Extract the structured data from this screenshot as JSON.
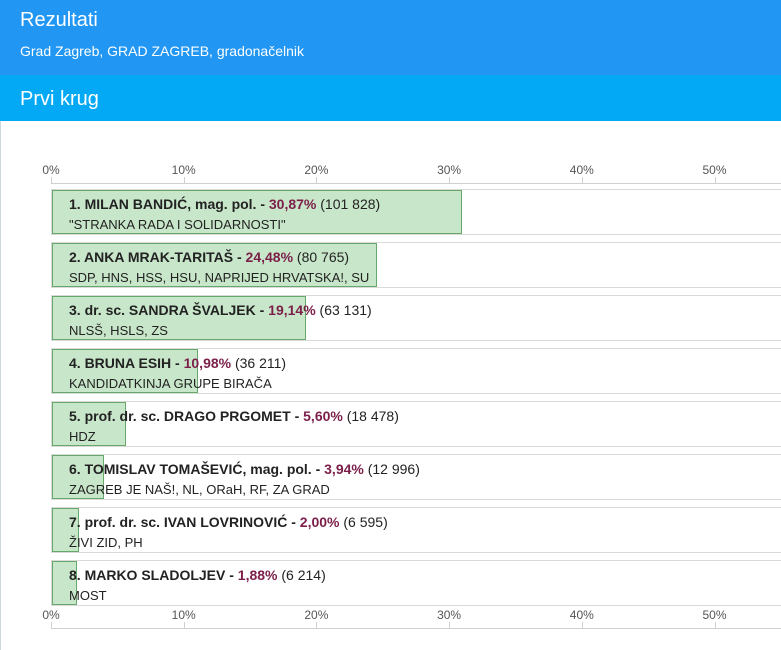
{
  "header": {
    "title": "Rezultati",
    "subtitle": "Grad Zagreb, GRAD ZAGREB, gradonačelnik"
  },
  "round": {
    "title": "Prvi krug"
  },
  "axis": {
    "ticks": [
      "0%",
      "10%",
      "20%",
      "30%",
      "40%",
      "50%"
    ]
  },
  "colors": {
    "header": "#2196f3",
    "subheader": "#03a9f4",
    "bar_fill": "#c8e6c9",
    "bar_border": "#66a86a",
    "percent_text": "#7b1f4a"
  },
  "candidates": [
    {
      "name": "1. MILAN BANDIĆ, mag. pol. - ",
      "percent_label": "30,87%",
      "percent": 30.87,
      "votes": " (101 828)",
      "party": "\"STRANKA RADA I SOLIDARNOSTI\""
    },
    {
      "name": "2. ANKA MRAK-TARITAŠ - ",
      "percent_label": "24,48%",
      "percent": 24.48,
      "votes": " (80 765)",
      "party": "SDP, HNS, HSS, HSU, NAPRIJED HRVATSKA!, SU"
    },
    {
      "name": "3. dr. sc. SANDRA ŠVALJEK - ",
      "percent_label": "19,14%",
      "percent": 19.14,
      "votes": " (63 131)",
      "party": "NLSŠ, HSLS, ZS"
    },
    {
      "name": "4. BRUNA ESIH - ",
      "percent_label": "10,98%",
      "percent": 10.98,
      "votes": " (36 211)",
      "party": "KANDIDATKINJA GRUPE BIRAČA"
    },
    {
      "name": "5. prof. dr. sc. DRAGO PRGOMET - ",
      "percent_label": "5,60%",
      "percent": 5.6,
      "votes": " (18 478)",
      "party": "HDZ"
    },
    {
      "name": "6. TOMISLAV TOMAŠEVIĆ, mag. pol. - ",
      "percent_label": "3,94%",
      "percent": 3.94,
      "votes": " (12 996)",
      "party": "ZAGREB JE NAŠ!, NL, ORaH, RF, ZA GRAD"
    },
    {
      "name": "7. prof. dr. sc. IVAN LOVRINOVIĆ - ",
      "percent_label": "2,00%",
      "percent": 2.0,
      "votes": " (6 595)",
      "party": "ŽIVI ZID, PH"
    },
    {
      "name": "8. MARKO SLADOLJEV - ",
      "percent_label": "1,88%",
      "percent": 1.88,
      "votes": " (6 214)",
      "party": "MOST"
    }
  ]
}
